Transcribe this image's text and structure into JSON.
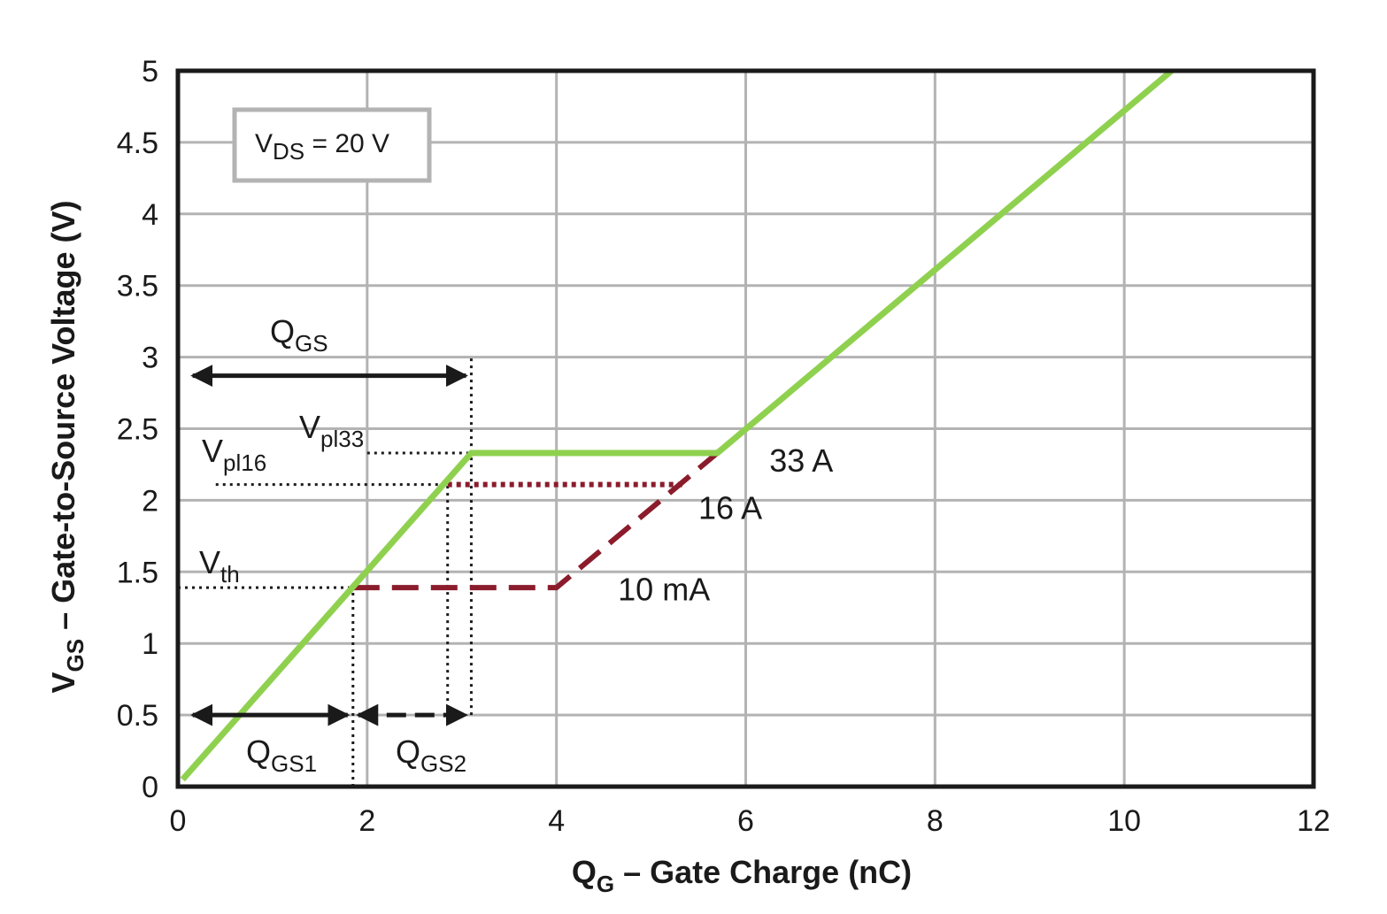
{
  "chart_data": {
    "type": "line",
    "xlabel": {
      "main": "Q",
      "sub": "G",
      "rest": " – Gate Charge (nC)"
    },
    "ylabel": {
      "main": "V",
      "sub": "GS",
      "rest": " – Gate-to-Source Voltage (V)"
    },
    "xlim": [
      0,
      12
    ],
    "ylim": [
      0,
      5
    ],
    "x_ticks": [
      "0",
      "2",
      "4",
      "6",
      "8",
      "10",
      "12"
    ],
    "y_ticks": [
      "0",
      "0.5",
      "1",
      "1.5",
      "2",
      "2.5",
      "3",
      "3.5",
      "4",
      "4.5",
      "5"
    ],
    "grid": true,
    "legend_box": {
      "main": "V",
      "sub": "DS",
      "rest": " = 20 V"
    },
    "colors": {
      "main": "#8fd14f",
      "secondary": "#8b1c2c",
      "grid": "#b3b3b3",
      "frame": "#1a1a1a",
      "legend_border": "#b3b3b3"
    },
    "series": [
      {
        "name": "33 A",
        "style": "solid",
        "x": [
          0.05,
          3.1,
          5.7,
          10.5
        ],
        "y": [
          0.05,
          2.33,
          2.33,
          5.0
        ]
      },
      {
        "name": "16 A",
        "style": "dotted",
        "x": [
          2.85,
          5.35
        ],
        "y": [
          2.11,
          2.11
        ]
      },
      {
        "name": "10 mA",
        "style": "dashed",
        "x": [
          1.85,
          4.0,
          5.7
        ],
        "y": [
          1.39,
          1.39,
          2.33
        ]
      }
    ],
    "series_labels": [
      {
        "text": "33 A",
        "x": 6.25,
        "y": 2.2
      },
      {
        "text": "16 A",
        "x": 5.5,
        "y": 1.87
      },
      {
        "text": "10 mA",
        "x": 4.65,
        "y": 1.3
      }
    ],
    "reference_lines": {
      "vth": {
        "main": "V",
        "sub": "th",
        "y": 1.39,
        "x_from": 0.0,
        "x_to": 1.85
      },
      "vpl16": {
        "main": "V",
        "sub": "pl16",
        "y": 2.11,
        "x_from": 0.4,
        "x_to": 2.85
      },
      "vpl33": {
        "main": "V",
        "sub": "pl33",
        "y": 2.33,
        "x_from": 2.0,
        "x_to": 3.1
      },
      "vertical": [
        {
          "x": 1.85,
          "y_from": 0.0,
          "y_to": 1.39
        },
        {
          "x": 2.85,
          "y_from": 0.5,
          "y_to": 2.11
        },
        {
          "x": 3.1,
          "y_from": 0.5,
          "y_to": 3.0
        }
      ]
    },
    "arrows": [
      {
        "name": "QGS",
        "main": "Q",
        "sub": "GS",
        "x_from": 0.1,
        "x_to": 3.1,
        "y": 2.87,
        "style": "solid"
      },
      {
        "name": "QGS1",
        "main": "Q",
        "sub": "GS1",
        "x_from": 0.1,
        "x_to": 1.85,
        "y": 0.5,
        "style": "solid"
      },
      {
        "name": "QGS2",
        "main": "Q",
        "sub": "GS2",
        "x_from": 1.85,
        "x_to": 3.1,
        "y": 0.5,
        "style": "dashed"
      }
    ]
  }
}
